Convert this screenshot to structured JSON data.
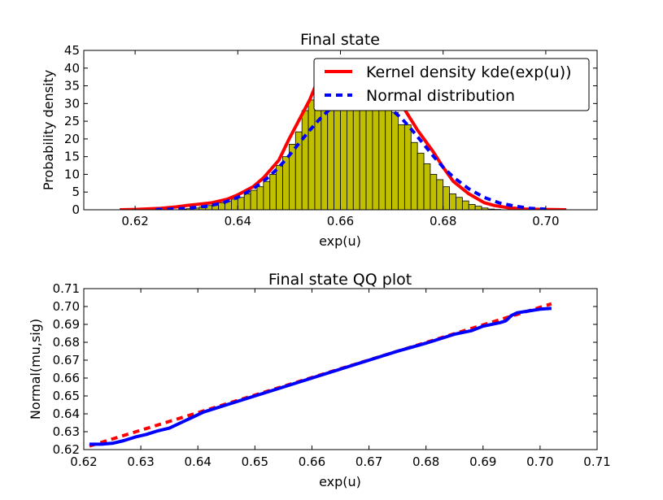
{
  "chart_data": [
    {
      "type": "histogram",
      "title": "Final state",
      "xlabel": "exp(u)",
      "ylabel": "Probability density",
      "xlim": [
        0.61,
        0.71
      ],
      "ylim": [
        0,
        45
      ],
      "xticks": [
        "0.62",
        "0.64",
        "0.66",
        "0.68",
        "0.70"
      ],
      "yticks": [
        "0",
        "5",
        "10",
        "15",
        "20",
        "25",
        "30",
        "35",
        "40",
        "45"
      ],
      "grid": false,
      "legend_position": "top-right",
      "colors": {
        "bars": "#bfbf00",
        "kde": "#ff0000",
        "normal": "#0000ff"
      },
      "histogram": {
        "bin_start": 0.6225,
        "bin_width": 0.00125,
        "values": [
          0,
          0,
          0,
          0,
          0,
          0.2,
          0.3,
          0.5,
          0.8,
          1.2,
          1.6,
          2.0,
          2.5,
          3.0,
          3.5,
          4.5,
          5.5,
          6.5,
          8.0,
          10.0,
          12.5,
          15.0,
          18.5,
          22.0,
          28.0,
          31.0,
          35.0,
          36.0,
          36.5,
          37.5,
          38.0,
          37.5,
          38.0,
          37.5,
          37.0,
          36.0,
          34.0,
          31.0,
          27.5,
          24.0,
          24.0,
          19.0,
          16.0,
          13.0,
          10.0,
          8.5,
          6.5,
          4.5,
          3.5,
          2.5,
          1.5,
          1.0,
          0.5,
          0.2,
          0.1,
          0,
          0,
          0,
          0
        ]
      },
      "series": [
        {
          "name": "Kernel density kde(exp(u))",
          "style": "solid",
          "x": [
            0.617,
            0.62,
            0.625,
            0.628,
            0.63,
            0.632,
            0.635,
            0.638,
            0.64,
            0.643,
            0.645,
            0.648,
            0.65,
            0.652,
            0.654,
            0.655,
            0.656,
            0.658,
            0.66,
            0.665,
            0.67,
            0.672,
            0.675,
            0.678,
            0.68,
            0.682,
            0.685,
            0.688,
            0.69,
            0.693,
            0.696,
            0.7,
            0.704
          ],
          "y": [
            0,
            0.1,
            0.4,
            0.8,
            1.2,
            1.5,
            2.0,
            3.0,
            4.2,
            6.5,
            9.0,
            14.0,
            20.0,
            25.5,
            31.0,
            34.5,
            36.0,
            37.0,
            37.5,
            37.5,
            34.0,
            29.5,
            22.5,
            16.5,
            12.0,
            8.0,
            4.5,
            2.0,
            1.2,
            0.5,
            0.2,
            0.1,
            0
          ]
        },
        {
          "name": "Normal distribution",
          "style": "dashed",
          "x": [
            0.624,
            0.627,
            0.63,
            0.634,
            0.637,
            0.64,
            0.643,
            0.646,
            0.648,
            0.65,
            0.652,
            0.654,
            0.656,
            0.658,
            0.66,
            0.663,
            0.666,
            0.669,
            0.672,
            0.674,
            0.676,
            0.678,
            0.68,
            0.682,
            0.685,
            0.688,
            0.691,
            0.694,
            0.697,
            0.7
          ],
          "y": [
            0.07,
            0.18,
            0.4,
            1.0,
            1.9,
            3.5,
            5.9,
            9.2,
            12.0,
            15.3,
            18.9,
            22.4,
            25.7,
            28.5,
            30.5,
            32.1,
            31.7,
            29.5,
            25.7,
            22.4,
            18.9,
            15.3,
            12.0,
            9.2,
            5.9,
            3.5,
            1.9,
            1.0,
            0.4,
            0.18
          ]
        }
      ]
    },
    {
      "type": "line",
      "title": "Final state QQ plot",
      "xlabel": "exp(u)",
      "ylabel": "Normal(mu,sig)",
      "xlim": [
        0.62,
        0.71
      ],
      "ylim": [
        0.62,
        0.71
      ],
      "xticks": [
        "0.62",
        "0.63",
        "0.64",
        "0.65",
        "0.66",
        "0.67",
        "0.68",
        "0.69",
        "0.70",
        "0.71"
      ],
      "yticks": [
        "0.62",
        "0.63",
        "0.64",
        "0.65",
        "0.66",
        "0.67",
        "0.68",
        "0.69",
        "0.70",
        "0.71"
      ],
      "grid": false,
      "colors": {
        "qq": "#0000ff",
        "reference": "#ff0000"
      },
      "series": [
        {
          "style": "solid",
          "x": [
            0.621,
            0.623,
            0.625,
            0.627,
            0.629,
            0.631,
            0.633,
            0.635,
            0.637,
            0.639,
            0.641,
            0.645,
            0.65,
            0.655,
            0.66,
            0.665,
            0.67,
            0.675,
            0.68,
            0.685,
            0.688,
            0.69,
            0.693,
            0.694,
            0.695,
            0.696,
            0.698,
            0.7,
            0.702
          ],
          "y": [
            0.623,
            0.623,
            0.6235,
            0.625,
            0.627,
            0.6285,
            0.6305,
            0.632,
            0.635,
            0.638,
            0.641,
            0.645,
            0.65,
            0.655,
            0.66,
            0.665,
            0.67,
            0.675,
            0.6795,
            0.6845,
            0.6865,
            0.689,
            0.691,
            0.692,
            0.695,
            0.6965,
            0.6975,
            0.6985,
            0.699
          ]
        },
        {
          "style": "dashed",
          "x": [
            0.621,
            0.702
          ],
          "y": [
            0.622,
            0.7015
          ]
        }
      ]
    }
  ]
}
